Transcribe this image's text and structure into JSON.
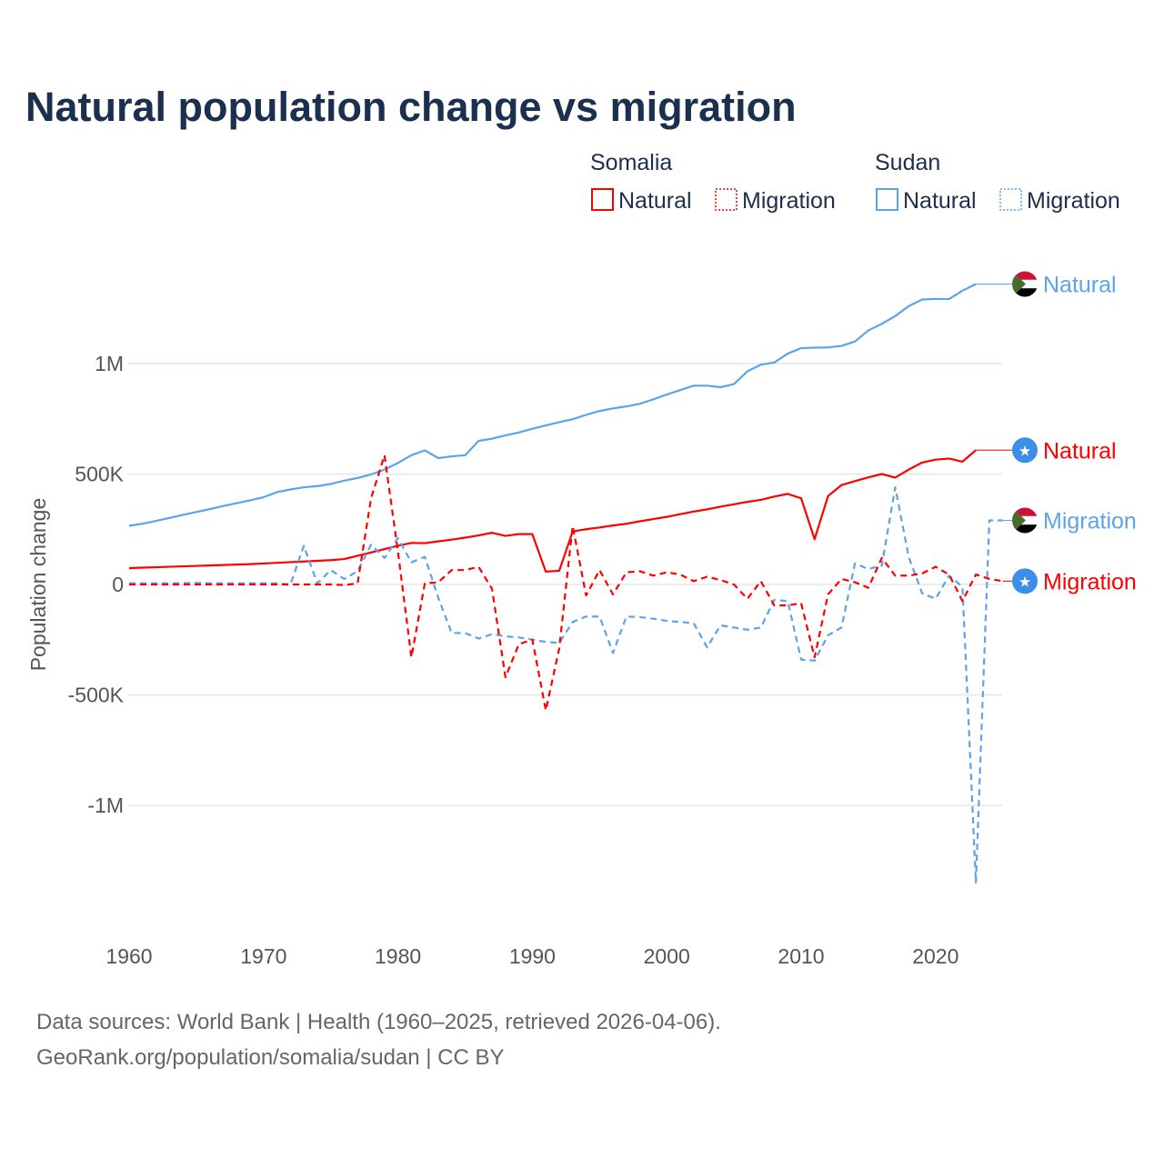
{
  "chart_data": {
    "type": "line",
    "title": "Natural population change vs migration",
    "xlabel": "",
    "ylabel": "Population change",
    "xlim": [
      1960,
      2025
    ],
    "ylim": [
      -1350000,
      1360000
    ],
    "x_ticks": [
      1960,
      1970,
      1980,
      1990,
      2000,
      2010,
      2020
    ],
    "x_tick_labels": [
      "1960",
      "1970",
      "1980",
      "1990",
      "2000",
      "2010",
      "2020"
    ],
    "y_ticks": [
      1000000,
      500000,
      0,
      -500000,
      -1000000
    ],
    "y_tick_labels": [
      "1M",
      "500K",
      "0",
      "-500K",
      "-1M"
    ],
    "grid": true,
    "legend": {
      "placement": "top-right",
      "groups": [
        {
          "title": "Somalia",
          "items": [
            "Natural",
            "Migration"
          ]
        },
        {
          "title": "Sudan",
          "items": [
            "Natural",
            "Migration"
          ]
        }
      ]
    },
    "x": [
      1960,
      1961,
      1962,
      1963,
      1964,
      1965,
      1966,
      1967,
      1968,
      1969,
      1970,
      1971,
      1972,
      1973,
      1974,
      1975,
      1976,
      1977,
      1978,
      1979,
      1980,
      1981,
      1982,
      1983,
      1984,
      1985,
      1986,
      1987,
      1988,
      1989,
      1990,
      1991,
      1992,
      1993,
      1994,
      1995,
      1996,
      1997,
      1998,
      1999,
      2000,
      2001,
      2002,
      2003,
      2004,
      2005,
      2006,
      2007,
      2008,
      2009,
      2010,
      2011,
      2012,
      2013,
      2014,
      2015,
      2016,
      2017,
      2018,
      2019,
      2020,
      2021,
      2022,
      2023,
      2024,
      2025
    ],
    "series": [
      {
        "name": "Sudan Natural",
        "country": "Sudan",
        "kind": "Natural",
        "color": "#5ba4ea",
        "dash": false,
        "values": [
          266000,
          275000,
          288000,
          301000,
          315000,
          328000,
          341000,
          355000,
          368000,
          381000,
          395000,
          418000,
          430000,
          440000,
          445000,
          455000,
          470000,
          482000,
          498000,
          520000,
          550000,
          585000,
          607000,
          572000,
          580000,
          585000,
          650000,
          660000,
          675000,
          688000,
          705000,
          720000,
          735000,
          748000,
          768000,
          785000,
          797000,
          806000,
          818000,
          838000,
          860000,
          880000,
          900000,
          900000,
          893000,
          907000,
          965000,
          995000,
          1005000,
          1045000,
          1070000,
          1072000,
          1073000,
          1080000,
          1100000,
          1150000,
          1180000,
          1215000,
          1260000,
          1290000,
          1293000,
          1292000,
          1330000,
          1360000,
          null,
          null
        ]
      },
      {
        "name": "Somalia Natural",
        "country": "Somalia",
        "kind": "Natural",
        "color": "#ff0000",
        "dash": false,
        "values": [
          74000,
          76000,
          78000,
          80000,
          82000,
          84000,
          86000,
          88000,
          90000,
          92000,
          95000,
          98000,
          101000,
          104000,
          107000,
          110000,
          115000,
          130000,
          145000,
          160000,
          175000,
          188000,
          187000,
          195000,
          203000,
          212000,
          222000,
          234000,
          220000,
          228000,
          228000,
          58000,
          62000,
          240000,
          250000,
          258000,
          267000,
          275000,
          286000,
          296000,
          306000,
          318000,
          330000,
          340000,
          352000,
          363000,
          374000,
          383000,
          398000,
          410000,
          390000,
          205000,
          400000,
          450000,
          468000,
          485000,
          500000,
          484000,
          520000,
          552000,
          565000,
          570000,
          556000,
          608000,
          null,
          null
        ]
      },
      {
        "name": "Sudan Migration",
        "country": "Sudan",
        "kind": "Migration",
        "color": "#5ba4ea",
        "dash": true,
        "values": [
          5000,
          5000,
          5000,
          5000,
          6000,
          7000,
          5000,
          5000,
          5000,
          5000,
          5000,
          5000,
          0,
          175000,
          5000,
          65000,
          25000,
          60000,
          180000,
          120000,
          210000,
          100000,
          125000,
          -60000,
          -220000,
          -220000,
          -245000,
          -225000,
          -235000,
          -240000,
          -250000,
          -260000,
          -265000,
          -170000,
          -145000,
          -145000,
          -310000,
          -145000,
          -148000,
          -155000,
          -165000,
          -170000,
          -175000,
          -285000,
          -185000,
          -195000,
          -205000,
          -195000,
          -70000,
          -75000,
          -340000,
          -345000,
          -230000,
          -195000,
          95000,
          70000,
          85000,
          440000,
          125000,
          -40000,
          -65000,
          40000,
          -10000,
          -1350000,
          290000,
          290000
        ]
      },
      {
        "name": "Somalia Migration",
        "country": "Somalia",
        "kind": "Migration",
        "color": "#ff0000",
        "dash": true,
        "values": [
          0,
          0,
          0,
          0,
          0,
          0,
          0,
          0,
          0,
          0,
          0,
          0,
          0,
          0,
          0,
          0,
          -3000,
          5000,
          390000,
          585000,
          150000,
          -330000,
          5000,
          10000,
          65000,
          65000,
          80000,
          -20000,
          -420000,
          -270000,
          -250000,
          -570000,
          -290000,
          265000,
          -50000,
          65000,
          -45000,
          55000,
          60000,
          40000,
          55000,
          45000,
          15000,
          35000,
          20000,
          0,
          -65000,
          15000,
          -95000,
          -95000,
          -85000,
          -330000,
          -45000,
          25000,
          10000,
          -15000,
          120000,
          40000,
          40000,
          50000,
          80000,
          45000,
          -75000,
          45000,
          25000,
          15000
        ]
      }
    ],
    "end_labels": [
      "Natural",
      "Natural",
      "Migration",
      "Migration"
    ]
  },
  "footer": {
    "line1": "Data sources: World Bank | Health (1960–2025, retrieved 2026-04-06).",
    "line2": "GeoRank.org/population/somalia/sudan | CC BY"
  }
}
